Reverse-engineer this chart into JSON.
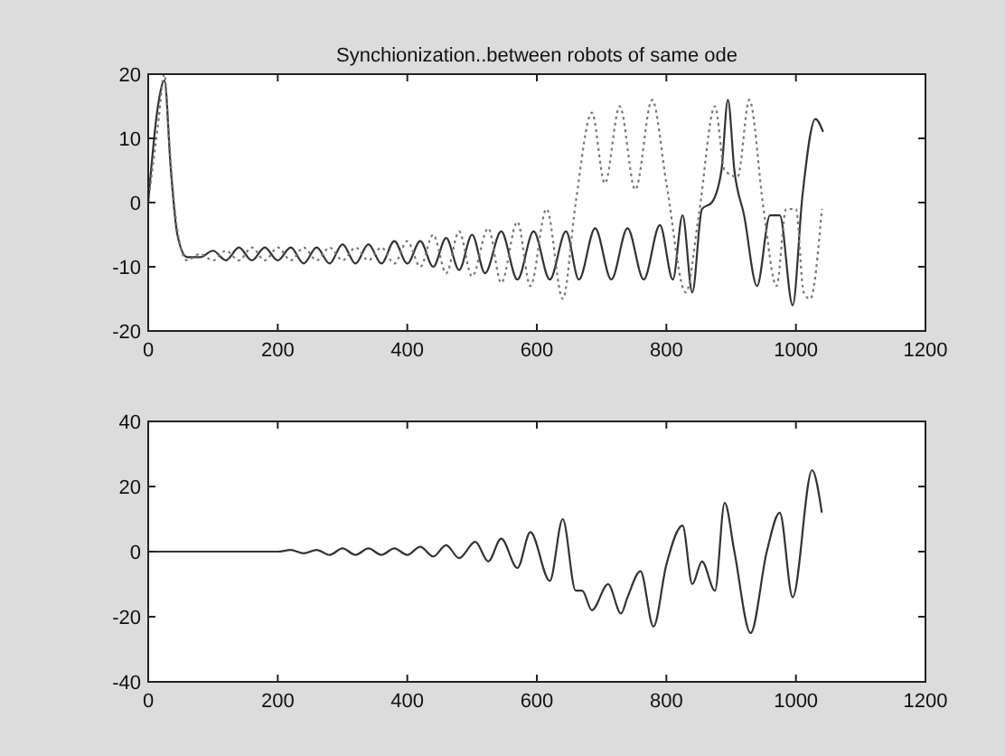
{
  "chart_data": [
    {
      "type": "line",
      "title": "Synchionization..between robots of same ode",
      "xlim": [
        0,
        1200
      ],
      "xticks": [
        0,
        200,
        400,
        600,
        800,
        1000,
        1200
      ],
      "ylim": [
        -20,
        20
      ],
      "yticks": [
        -20,
        -10,
        0,
        10,
        20
      ],
      "grid": false,
      "series": [
        {
          "color": "#333333",
          "line_style": "solid",
          "x": [
            0,
            15,
            25,
            35,
            45,
            60,
            80,
            100,
            120,
            140,
            160,
            180,
            200,
            220,
            240,
            260,
            280,
            300,
            320,
            340,
            360,
            380,
            400,
            420,
            440,
            460,
            480,
            500,
            520,
            545,
            570,
            595,
            620,
            645,
            665,
            690,
            715,
            740,
            765,
            790,
            810,
            825,
            840,
            855,
            870,
            885,
            895,
            905,
            920,
            940,
            960,
            975,
            995,
            1010,
            1030,
            1042
          ],
          "values": [
            0,
            15,
            19,
            5,
            -5,
            -8.5,
            -8.5,
            -7.5,
            -9,
            -7,
            -9,
            -7,
            -9,
            -7,
            -9.5,
            -7,
            -9.5,
            -6.5,
            -9.5,
            -6.5,
            -9.5,
            -6,
            -9.5,
            -6,
            -10,
            -5.5,
            -10.5,
            -5,
            -11,
            -4.5,
            -12,
            -4.5,
            -12,
            -4.5,
            -12,
            -4,
            -12,
            -4,
            -12,
            -3.5,
            -12,
            -2,
            -14,
            -1,
            0,
            5,
            16,
            5,
            -2,
            -13,
            -2,
            -2,
            -16,
            1,
            13,
            11
          ]
        },
        {
          "color": "#777777",
          "line_style": "dotted",
          "x": [
            0,
            15,
            25,
            32,
            40,
            50,
            60,
            80,
            100,
            120,
            140,
            160,
            180,
            200,
            220,
            240,
            260,
            280,
            300,
            320,
            340,
            360,
            380,
            400,
            420,
            440,
            460,
            480,
            500,
            525,
            545,
            570,
            590,
            615,
            640,
            660,
            685,
            705,
            728,
            752,
            778,
            800,
            830,
            850,
            875,
            890,
            910,
            928,
            950,
            970,
            985,
            1000,
            1012,
            1022,
            1040
          ],
          "values": [
            0,
            12,
            20,
            10,
            0,
            -7,
            -9,
            -8,
            -9,
            -7.5,
            -9,
            -7,
            -9,
            -7,
            -9,
            -7,
            -9,
            -7,
            -9,
            -7,
            -9,
            -7,
            -9.5,
            -6,
            -10,
            -5,
            -11,
            -4.5,
            -11.5,
            -4,
            -12.5,
            -3,
            -13,
            -1,
            -15,
            0,
            14,
            3,
            15,
            2,
            16,
            3,
            -14,
            -2,
            15,
            5,
            4,
            16,
            -1,
            -13,
            -1,
            -1,
            -14,
            -15,
            -1
          ]
        }
      ]
    },
    {
      "type": "line",
      "xlim": [
        0,
        1200
      ],
      "xticks": [
        0,
        200,
        400,
        600,
        800,
        1000,
        1200
      ],
      "ylim": [
        -40,
        40
      ],
      "yticks": [
        -40,
        -20,
        0,
        20,
        40
      ],
      "grid": false,
      "series": [
        {
          "color": "#333333",
          "line_style": "solid",
          "x": [
            0,
            200,
            220,
            240,
            260,
            280,
            300,
            320,
            340,
            360,
            380,
            400,
            420,
            440,
            460,
            480,
            505,
            525,
            545,
            570,
            590,
            620,
            640,
            660,
            670,
            685,
            710,
            730,
            740,
            760,
            780,
            800,
            825,
            840,
            855,
            875,
            890,
            905,
            930,
            955,
            975,
            995,
            1025,
            1040
          ],
          "values": [
            0,
            0,
            0.5,
            -0.5,
            0.5,
            -1,
            1,
            -1,
            1,
            -1,
            1,
            -1,
            1.5,
            -1.5,
            2,
            -2,
            3,
            -3,
            4,
            -5,
            6,
            -9,
            10,
            -12,
            -12,
            -18,
            -10,
            -19,
            -14,
            -6,
            -23,
            -4,
            8,
            -10,
            -3,
            -12,
            15,
            0,
            -25,
            0,
            12,
            -14,
            25,
            12
          ]
        }
      ]
    }
  ]
}
